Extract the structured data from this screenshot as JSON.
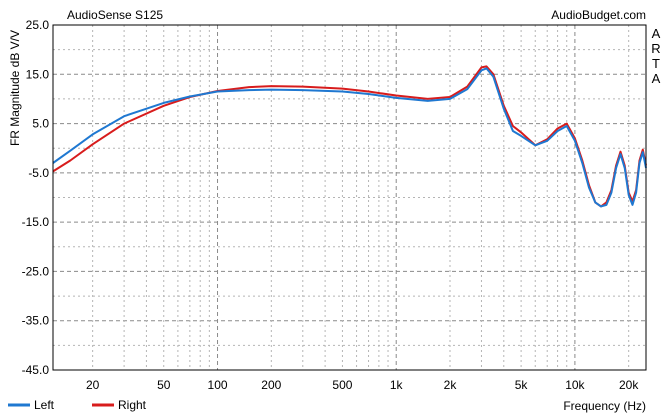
{
  "chart_data": {
    "type": "line",
    "title": "AudioSense S125",
    "source": "AudioBudget.com",
    "side_label": [
      "A",
      "R",
      "T",
      "A"
    ],
    "xlabel": "Frequency (Hz)",
    "ylabel": "FR Magnitude dB V/V",
    "xscale": "log",
    "xlim": [
      12,
      25000
    ],
    "ylim": [
      -45,
      25
    ],
    "yticks": [
      25.0,
      15.0,
      5.0,
      -5.0,
      -15.0,
      -25.0,
      -35.0,
      -45.0
    ],
    "ytick_labels": [
      "25.0",
      "15.0",
      "5.0",
      "-5.0",
      "-15.0",
      "-25.0",
      "-35.0",
      "-45.0"
    ],
    "xticks": [
      20,
      50,
      100,
      200,
      500,
      1000,
      2000,
      5000,
      10000,
      20000
    ],
    "xtick_labels": [
      "20",
      "50",
      "100",
      "200",
      "500",
      "1k",
      "2k",
      "5k",
      "10k",
      "20k"
    ],
    "grid": true,
    "legend": "bottom-left",
    "series": [
      {
        "name": "Left",
        "color": "#1f78d1",
        "points": [
          [
            12,
            -3
          ],
          [
            15,
            -0.5
          ],
          [
            20,
            2.8
          ],
          [
            30,
            6.5
          ],
          [
            50,
            9.2
          ],
          [
            70,
            10.5
          ],
          [
            100,
            11.5
          ],
          [
            150,
            11.8
          ],
          [
            200,
            11.9
          ],
          [
            300,
            11.8
          ],
          [
            500,
            11.5
          ],
          [
            700,
            11.0
          ],
          [
            1000,
            10.2
          ],
          [
            1500,
            9.6
          ],
          [
            2000,
            10.0
          ],
          [
            2500,
            12.0
          ],
          [
            3000,
            15.8
          ],
          [
            3200,
            16.2
          ],
          [
            3500,
            14.5
          ],
          [
            4000,
            8.0
          ],
          [
            4500,
            3.5
          ],
          [
            5000,
            2.5
          ],
          [
            6000,
            0.6
          ],
          [
            7000,
            1.5
          ],
          [
            8000,
            3.5
          ],
          [
            9000,
            4.5
          ],
          [
            10000,
            1.5
          ],
          [
            11000,
            -3.0
          ],
          [
            12000,
            -8.0
          ],
          [
            13000,
            -11.0
          ],
          [
            14000,
            -11.8
          ],
          [
            15000,
            -11.5
          ],
          [
            16000,
            -9.0
          ],
          [
            17000,
            -4.0
          ],
          [
            18000,
            -1.2
          ],
          [
            19000,
            -4.0
          ],
          [
            20000,
            -9.5
          ],
          [
            21000,
            -11.5
          ],
          [
            22000,
            -9.0
          ],
          [
            23000,
            -3.0
          ],
          [
            24000,
            -0.8
          ],
          [
            25000,
            -4.0
          ]
        ]
      },
      {
        "name": "Right",
        "color": "#d81c1c",
        "points": [
          [
            12,
            -4.7
          ],
          [
            15,
            -2.5
          ],
          [
            20,
            0.8
          ],
          [
            30,
            5.0
          ],
          [
            50,
            8.6
          ],
          [
            70,
            10.4
          ],
          [
            100,
            11.6
          ],
          [
            150,
            12.4
          ],
          [
            200,
            12.6
          ],
          [
            300,
            12.5
          ],
          [
            500,
            12.1
          ],
          [
            700,
            11.5
          ],
          [
            1000,
            10.7
          ],
          [
            1500,
            10.0
          ],
          [
            2000,
            10.4
          ],
          [
            2500,
            12.5
          ],
          [
            3000,
            16.4
          ],
          [
            3200,
            16.6
          ],
          [
            3500,
            15.0
          ],
          [
            4000,
            8.6
          ],
          [
            4500,
            4.5
          ],
          [
            5000,
            3.2
          ],
          [
            6000,
            0.6
          ],
          [
            7000,
            1.8
          ],
          [
            8000,
            4.0
          ],
          [
            9000,
            5.0
          ],
          [
            10000,
            2.0
          ],
          [
            11000,
            -2.5
          ],
          [
            12000,
            -7.5
          ],
          [
            13000,
            -11.0
          ],
          [
            14000,
            -11.8
          ],
          [
            15000,
            -11.0
          ],
          [
            16000,
            -8.5
          ],
          [
            17000,
            -3.5
          ],
          [
            18000,
            -0.7
          ],
          [
            19000,
            -3.5
          ],
          [
            20000,
            -9.0
          ],
          [
            21000,
            -10.8
          ],
          [
            22000,
            -8.5
          ],
          [
            23000,
            -2.5
          ],
          [
            24000,
            -0.3
          ],
          [
            25000,
            -3.5
          ]
        ]
      }
    ]
  }
}
